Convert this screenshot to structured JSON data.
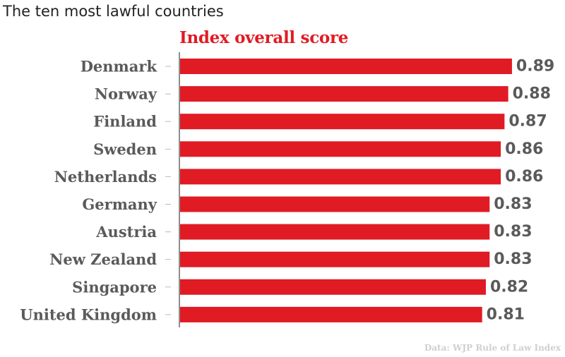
{
  "chart_data": {
    "type": "bar",
    "orientation": "horizontal",
    "title": "The ten most lawful countries",
    "subtitle": "Index overall score",
    "source": "Data: WJP Rule of Law Index",
    "categories": [
      "Denmark",
      "Norway",
      "Finland",
      "Sweden",
      "Netherlands",
      "Germany",
      "Austria",
      "New Zealand",
      "Singapore",
      "United Kingdom"
    ],
    "values": [
      0.89,
      0.88,
      0.87,
      0.86,
      0.86,
      0.83,
      0.83,
      0.83,
      0.82,
      0.81
    ],
    "value_labels": [
      "0.89",
      "0.88",
      "0.87",
      "0.86",
      "0.86",
      "0.83",
      "0.83",
      "0.83",
      "0.82",
      "0.81"
    ],
    "xlim": [
      0,
      1
    ],
    "grid": false,
    "colors": {
      "bar": "#e01b24",
      "subtitle": "#e01b24",
      "label": "#5a5a5a",
      "value": "#5a5a5a",
      "axis": "#444444",
      "tick": "#bbbbbb",
      "source": "#cfcfcf"
    }
  }
}
